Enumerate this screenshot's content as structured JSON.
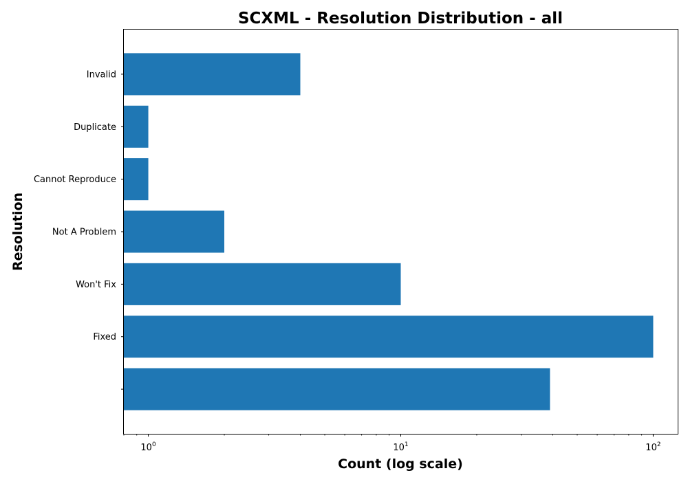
{
  "chart_data": {
    "type": "bar",
    "orientation": "horizontal",
    "title": "SCXML - Resolution Distribution - all",
    "xlabel": "Count (log scale)",
    "ylabel": "Resolution",
    "x_scale": "log",
    "xlim": [
      0.8,
      125
    ],
    "x_ticks": [
      {
        "value": 1,
        "base": "10",
        "exp": "0"
      },
      {
        "value": 10,
        "base": "10",
        "exp": "1"
      },
      {
        "value": 100,
        "base": "10",
        "exp": "2"
      }
    ],
    "categories": [
      "",
      "Fixed",
      "Won't Fix",
      "Not A Problem",
      "Cannot Reproduce",
      "Duplicate",
      "Invalid"
    ],
    "values": [
      39,
      100,
      10,
      2,
      1,
      1,
      4
    ],
    "bar_color": "#1f77b4",
    "grid": false
  }
}
